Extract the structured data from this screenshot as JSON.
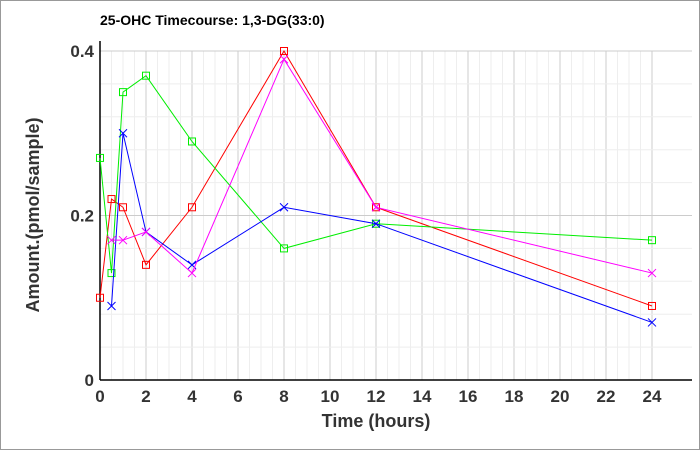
{
  "chart_data": {
    "type": "line",
    "title": "25-OHC Timecourse: 1,3-DG(33:0)",
    "xlabel": "Time (hours)",
    "ylabel": "Amount.(pmol/sample)",
    "xlim": [
      0,
      24
    ],
    "ylim": [
      0,
      0.4
    ],
    "xticks": [
      0,
      2,
      4,
      6,
      8,
      10,
      12,
      14,
      16,
      18,
      20,
      22,
      24
    ],
    "yticks": [
      0,
      0.2,
      0.4
    ],
    "ytick_labels": [
      "0",
      "0.2",
      "0.4"
    ],
    "grid": true,
    "series": [
      {
        "name": "red",
        "color": "#ff0000",
        "marker": "square",
        "x": [
          0,
          0.5,
          1,
          2,
          4,
          8,
          12,
          24
        ],
        "values": [
          0.1,
          0.22,
          0.21,
          0.14,
          0.21,
          0.4,
          0.21,
          0.09
        ]
      },
      {
        "name": "green",
        "color": "#00ee00",
        "marker": "square",
        "x": [
          0,
          0.5,
          1,
          2,
          4,
          8,
          12,
          24
        ],
        "values": [
          0.27,
          0.13,
          0.35,
          0.37,
          0.29,
          0.16,
          0.19,
          0.17
        ]
      },
      {
        "name": "blue",
        "color": "#0000ff",
        "marker": "x",
        "x": [
          0.5,
          1,
          2,
          4,
          8,
          12,
          24
        ],
        "values": [
          0.09,
          0.3,
          0.18,
          0.14,
          0.21,
          0.19,
          0.07
        ]
      },
      {
        "name": "magenta",
        "color": "#ff00ff",
        "marker": "x",
        "x": [
          0.5,
          1,
          2,
          4,
          8,
          12,
          24
        ],
        "values": [
          0.17,
          0.17,
          0.18,
          0.13,
          0.39,
          0.21,
          0.13
        ]
      }
    ]
  }
}
